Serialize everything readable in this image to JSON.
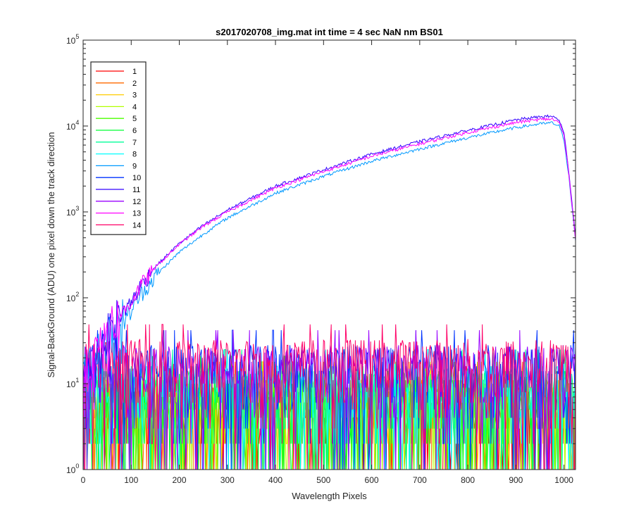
{
  "chart_data": {
    "type": "line",
    "title": "s2017020708_img.mat int time = 4 sec  NaN nm BS01",
    "xlabel": "Wavelength Pixels",
    "ylabel": "Signal-BackGround (ADU) one pixel down the track direction",
    "xlim": [
      0,
      1024
    ],
    "ylim": [
      1,
      100000
    ],
    "yscale": "log",
    "grid": false,
    "legend_position": "top-left",
    "x_ticks": [
      "0",
      "100",
      "200",
      "300",
      "400",
      "500",
      "600",
      "700",
      "800",
      "900",
      "1000"
    ],
    "y_ticks": [
      {
        "base": "10",
        "exp": "0",
        "value": 1
      },
      {
        "base": "10",
        "exp": "1",
        "value": 10
      },
      {
        "base": "10",
        "exp": "2",
        "value": 100
      },
      {
        "base": "10",
        "exp": "3",
        "value": 1000
      },
      {
        "base": "10",
        "exp": "4",
        "value": 10000
      },
      {
        "base": "10",
        "exp": "5",
        "value": 100000
      }
    ],
    "series": [
      {
        "name": "1",
        "color": "#ff0000",
        "kind": "noise",
        "level": 4
      },
      {
        "name": "2",
        "color": "#ff6a00",
        "kind": "noise",
        "level": 5
      },
      {
        "name": "3",
        "color": "#ffcc00",
        "kind": "noise",
        "level": 5
      },
      {
        "name": "4",
        "color": "#b2ff00",
        "kind": "noise",
        "level": 5
      },
      {
        "name": "5",
        "color": "#4cff00",
        "kind": "noise",
        "level": 5
      },
      {
        "name": "6",
        "color": "#00ff33",
        "kind": "noise",
        "level": 6
      },
      {
        "name": "7",
        "color": "#00ff99",
        "kind": "noise",
        "level": 7
      },
      {
        "name": "8",
        "color": "#00ffff",
        "kind": "noise",
        "level": 7
      },
      {
        "name": "9",
        "color": "#0099ff",
        "kind": "signal",
        "x": [
          0,
          40,
          60,
          80,
          100,
          120,
          150,
          200,
          250,
          300,
          400,
          500,
          600,
          700,
          800,
          900,
          950,
          975,
          990,
          1000,
          1010,
          1024
        ],
        "y": [
          12,
          25,
          40,
          55,
          70,
          110,
          180,
          340,
          550,
          850,
          1650,
          2600,
          3900,
          5400,
          7300,
          9600,
          10600,
          10900,
          10000,
          7000,
          2600,
          450
        ]
      },
      {
        "name": "10",
        "color": "#0033ff",
        "kind": "noise",
        "level": 12
      },
      {
        "name": "11",
        "color": "#3300ff",
        "kind": "signal",
        "x": [
          0,
          40,
          60,
          80,
          100,
          120,
          150,
          200,
          250,
          300,
          400,
          500,
          600,
          700,
          800,
          900,
          950,
          975,
          990,
          1000,
          1010,
          1024
        ],
        "y": [
          12,
          28,
          45,
          65,
          90,
          140,
          230,
          430,
          700,
          1050,
          2000,
          3100,
          4700,
          6600,
          8900,
          11800,
          12800,
          13000,
          11800,
          8200,
          3000,
          520
        ]
      },
      {
        "name": "12",
        "color": "#9900ff",
        "kind": "noise",
        "level": 12
      },
      {
        "name": "13",
        "color": "#ff00ff",
        "kind": "signal",
        "x": [
          0,
          40,
          60,
          80,
          100,
          120,
          150,
          200,
          250,
          300,
          400,
          500,
          600,
          700,
          800,
          900,
          950,
          975,
          990,
          1000,
          1010,
          1024
        ],
        "y": [
          12,
          28,
          45,
          65,
          90,
          140,
          225,
          420,
          680,
          1000,
          1900,
          2950,
          4450,
          6200,
          8400,
          11000,
          11900,
          12100,
          11000,
          7700,
          2800,
          490
        ]
      },
      {
        "name": "14",
        "color": "#ff0066",
        "kind": "noise",
        "level": 14
      }
    ]
  }
}
